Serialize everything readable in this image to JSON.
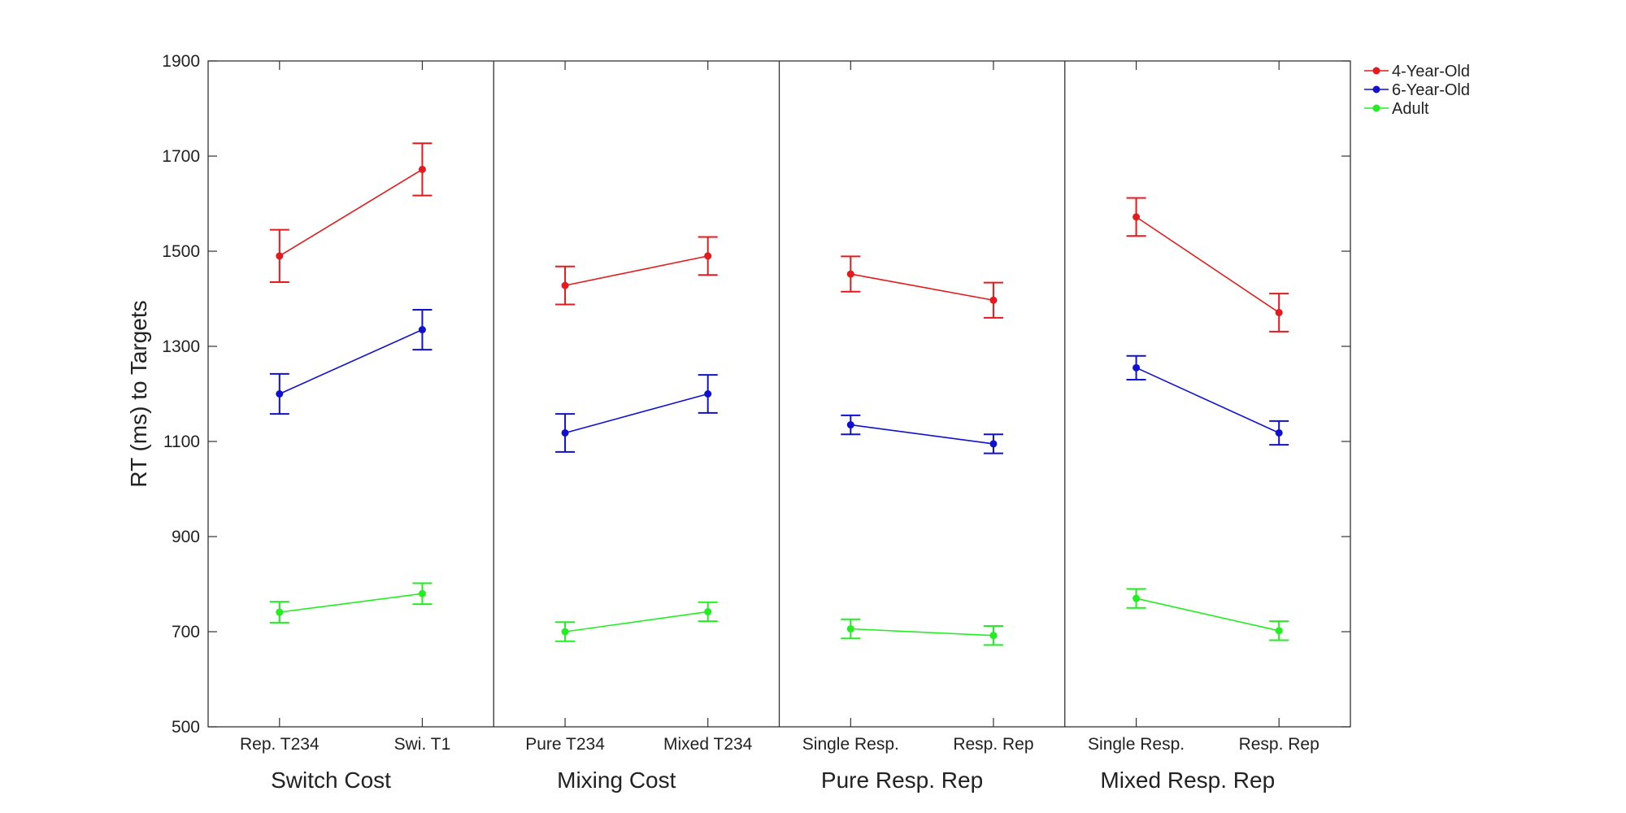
{
  "chart_data": {
    "type": "line",
    "ylabel": "RT (ms) to Targets",
    "ylim": [
      500,
      1900
    ],
    "yticks": [
      500,
      700,
      900,
      1100,
      1300,
      1500,
      1700,
      1900
    ],
    "grid": false,
    "legend_position": "top-right outside",
    "panels": [
      {
        "title": "Switch Cost",
        "categories": [
          "Rep. T234",
          "Swi. T1"
        ]
      },
      {
        "title": "Mixing Cost",
        "categories": [
          "Pure T234",
          "Mixed T234"
        ]
      },
      {
        "title": "Pure Resp. Rep",
        "categories": [
          "Single Resp.",
          "Resp. Rep"
        ]
      },
      {
        "title": "Mixed Resp. Rep",
        "categories": [
          "Single Resp.",
          "Resp. Rep"
        ]
      }
    ],
    "series": [
      {
        "name": "4-Year-Old",
        "color": "#e41a1c",
        "values": [
          [
            1490,
            1672
          ],
          [
            1428,
            1490
          ],
          [
            1452,
            1397
          ],
          [
            1572,
            1371
          ]
        ],
        "errors": [
          [
            55,
            55
          ],
          [
            40,
            40
          ],
          [
            37,
            37
          ],
          [
            40,
            40
          ]
        ]
      },
      {
        "name": "6-Year-Old",
        "color": "#1010d0",
        "values": [
          [
            1200,
            1335
          ],
          [
            1118,
            1200
          ],
          [
            1135,
            1095
          ],
          [
            1255,
            1118
          ]
        ],
        "errors": [
          [
            42,
            42
          ],
          [
            40,
            40
          ],
          [
            20,
            20
          ],
          [
            25,
            25
          ]
        ]
      },
      {
        "name": "Adult",
        "color": "#22ee22",
        "values": [
          [
            741,
            780
          ],
          [
            700,
            742
          ],
          [
            706,
            692
          ],
          [
            770,
            702
          ]
        ],
        "errors": [
          [
            22,
            22
          ],
          [
            20,
            20
          ],
          [
            20,
            20
          ],
          [
            20,
            20
          ]
        ]
      }
    ]
  }
}
